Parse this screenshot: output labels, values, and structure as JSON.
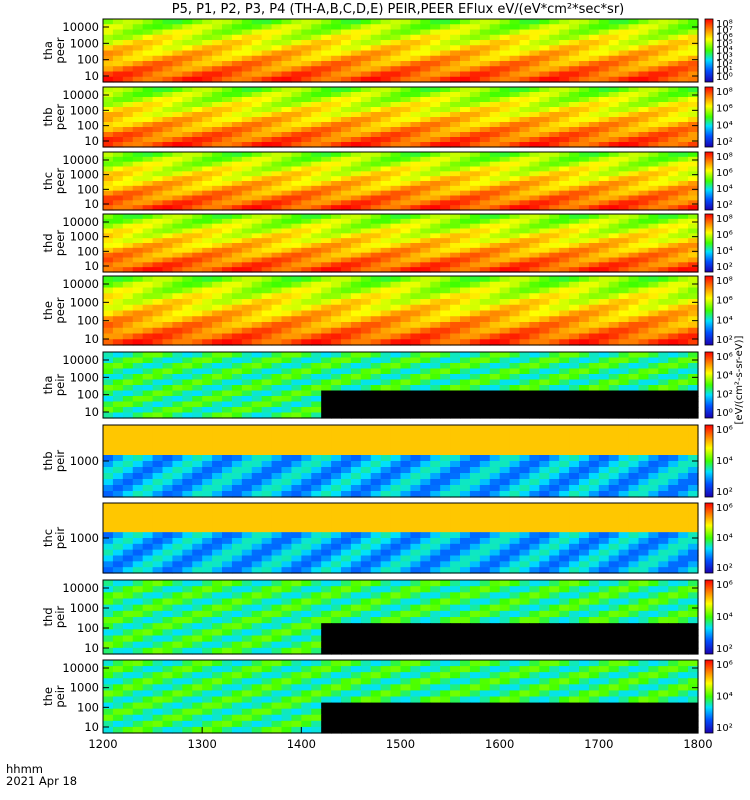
{
  "chart_data": {
    "type": "heatmap",
    "title": "P5, P1, P2, P3, P4 (TH-A,B,C,D,E) PEIR,PEER EFlux eV/(eV*cm²*sec*sr)",
    "x_tick_labels": [
      "1200",
      "1300",
      "1400",
      "1500",
      "1600",
      "1700",
      "1800"
    ],
    "x_ticks": [
      1200,
      1300,
      1400,
      1500,
      1600,
      1700,
      1800
    ],
    "xlim": [
      1200,
      1800
    ],
    "x_label_format": "hhmm",
    "date_label": "2021 Apr 18",
    "colorbar_unit_label": "[eV/(cm²-s-sr-eV)]",
    "colors": {
      "low": "#1a00b0",
      "mid_low": "#00e0ff",
      "mid": "#3cff00",
      "mid_high": "#ffff00",
      "high": "#ff0000",
      "fill": "#000000"
    },
    "panels": [
      {
        "ylabel_top": "tha",
        "ylabel_bottom": "peer",
        "y_ticks": [
          "10000",
          "1000",
          "100",
          "10"
        ],
        "y_scale": "log",
        "cb_ticks": [
          "10⁸",
          "10⁷",
          "10⁶",
          "10⁵",
          "10⁴",
          "10³",
          "10²",
          "10¹",
          "10⁰"
        ]
      },
      {
        "ylabel_top": "thb",
        "ylabel_bottom": "peer",
        "y_ticks": [
          "10000",
          "1000",
          "100",
          "10"
        ],
        "y_scale": "log",
        "cb_ticks": [
          "10⁸",
          "10⁶",
          "10⁴",
          "10²"
        ]
      },
      {
        "ylabel_top": "thc",
        "ylabel_bottom": "peer",
        "y_ticks": [
          "10000",
          "1000",
          "100",
          "10"
        ],
        "y_scale": "log",
        "cb_ticks": [
          "10⁸",
          "10⁶",
          "10⁴",
          "10²"
        ]
      },
      {
        "ylabel_top": "thd",
        "ylabel_bottom": "peer",
        "y_ticks": [
          "10000",
          "1000",
          "100",
          "10"
        ],
        "y_scale": "log",
        "cb_ticks": [
          "10⁸",
          "10⁶",
          "10⁴",
          "10²"
        ]
      },
      {
        "ylabel_top": "the",
        "ylabel_bottom": "peer",
        "y_ticks": [
          "10000",
          "1000",
          "100",
          "10"
        ],
        "y_scale": "log",
        "cb_ticks": [
          "10⁸",
          "10⁶",
          "10⁴",
          "10²"
        ]
      },
      {
        "ylabel_top": "tha",
        "ylabel_bottom": "peir",
        "y_ticks": [
          "10000",
          "1000",
          "100",
          "10"
        ],
        "y_scale": "log",
        "cb_ticks": [
          "10⁶",
          "10⁴",
          "10²",
          "10⁰"
        ]
      },
      {
        "ylabel_top": "thb",
        "ylabel_bottom": "peir",
        "y_ticks": [
          "1000"
        ],
        "y_scale": "log",
        "cb_ticks": [
          "10⁶",
          "10⁴",
          "10²"
        ]
      },
      {
        "ylabel_top": "thc",
        "ylabel_bottom": "peir",
        "y_ticks": [
          "1000"
        ],
        "y_scale": "log",
        "cb_ticks": [
          "10⁶",
          "10⁴",
          "10²"
        ]
      },
      {
        "ylabel_top": "thd",
        "ylabel_bottom": "peir",
        "y_ticks": [
          "10000",
          "1000",
          "100",
          "10"
        ],
        "y_scale": "log",
        "cb_ticks": [
          "10⁶",
          "10⁴",
          "10²"
        ]
      },
      {
        "ylabel_top": "the",
        "ylabel_bottom": "peir",
        "y_ticks": [
          "10000",
          "1000",
          "100",
          "10"
        ],
        "y_scale": "log",
        "cb_ticks": [
          "10⁶",
          "10⁴",
          "10²"
        ]
      }
    ]
  }
}
